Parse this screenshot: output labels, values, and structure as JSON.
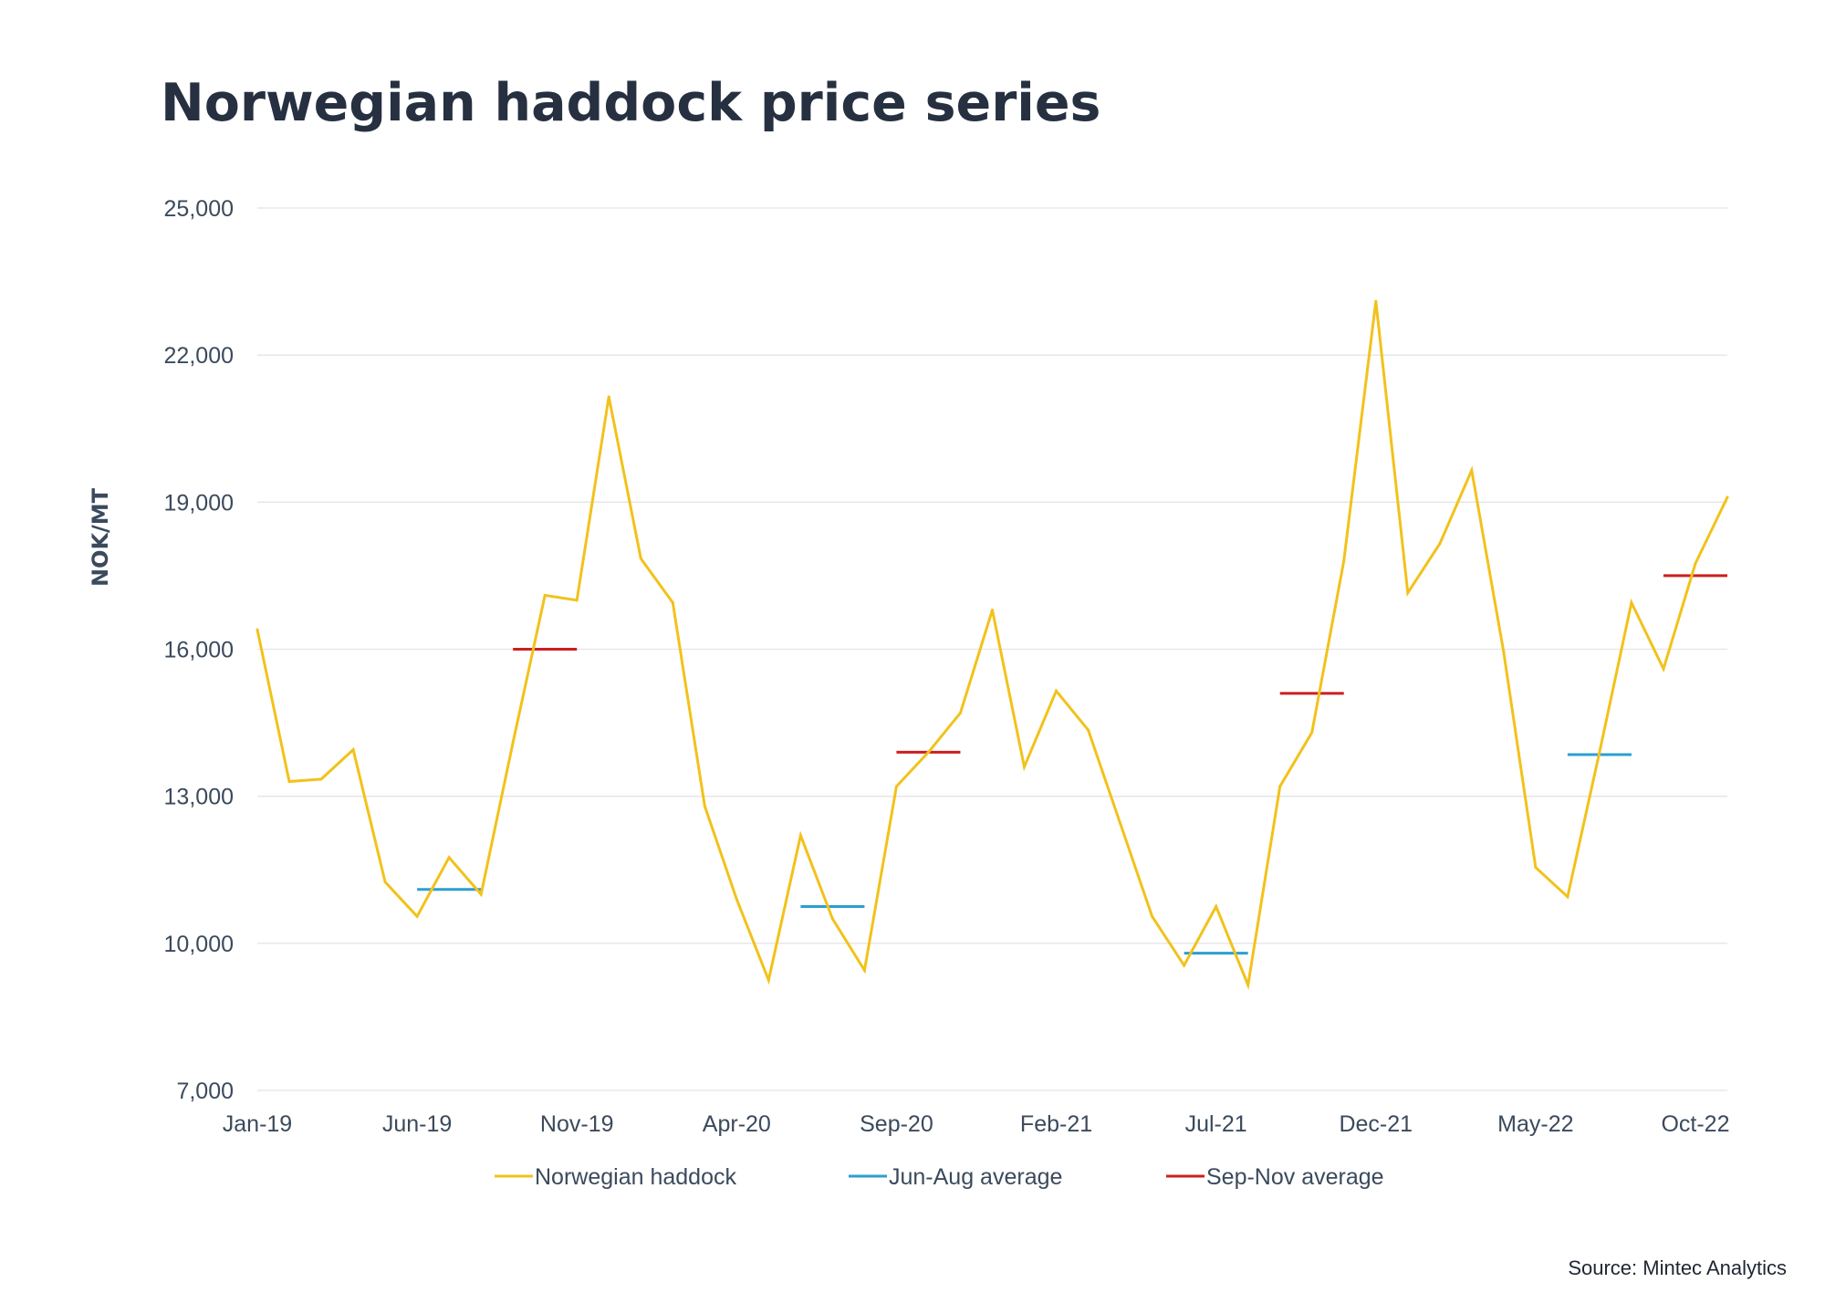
{
  "title": "Norwegian haddock price series",
  "source": "Source: Mintec Analytics",
  "colors": {
    "price_line": "#f2c21b",
    "jun_aug": "#2b9fce",
    "sep_nov": "#cc1f1f",
    "grid": "#e4e4e4",
    "text": "#3b4a5c",
    "title": "#263040"
  },
  "chart_data": {
    "type": "line",
    "title": "Norwegian haddock price series",
    "xlabel": "",
    "ylabel": "NOK/MT",
    "ylim": [
      7000,
      25000
    ],
    "yticks": [
      7000,
      10000,
      13000,
      16000,
      19000,
      22000,
      25000
    ],
    "ytick_labels": [
      "7,000",
      "10,000",
      "13,000",
      "16,000",
      "19,000",
      "22,000",
      "25,000"
    ],
    "grid": true,
    "legend_position": "bottom",
    "x": [
      "Jan-19",
      "Feb-19",
      "Mar-19",
      "Apr-19",
      "May-19",
      "Jun-19",
      "Jul-19",
      "Aug-19",
      "Sep-19",
      "Oct-19",
      "Nov-19",
      "Dec-19",
      "Jan-20",
      "Feb-20",
      "Mar-20",
      "Apr-20",
      "May-20",
      "Jun-20",
      "Jul-20",
      "Aug-20",
      "Sep-20",
      "Oct-20",
      "Nov-20",
      "Dec-20",
      "Jan-21",
      "Feb-21",
      "Mar-21",
      "Apr-21",
      "May-21",
      "Jun-21",
      "Jul-21",
      "Aug-21",
      "Sep-21",
      "Oct-21",
      "Nov-21",
      "Dec-21",
      "Jan-22",
      "Feb-22",
      "Mar-22",
      "Apr-22",
      "May-22",
      "Jun-22",
      "Jul-22",
      "Aug-22",
      "Sep-22",
      "Oct-22",
      "Nov-22"
    ],
    "xtick_labels": [
      "Jan-19",
      "Jun-19",
      "Nov-19",
      "Apr-20",
      "Sep-20",
      "Feb-21",
      "Jul-21",
      "Dec-21",
      "May-22",
      "Oct-22"
    ],
    "series": [
      {
        "name": "Norwegian haddock",
        "values": [
          16400,
          13300,
          13350,
          13950,
          11250,
          10550,
          11750,
          11000,
          14100,
          17100,
          17000,
          21150,
          17850,
          16950,
          12800,
          10900,
          9250,
          12200,
          10500,
          9450,
          13200,
          13900,
          14700,
          16800,
          13600,
          15150,
          14350,
          12450,
          10550,
          9550,
          10750,
          9150,
          13200,
          14300,
          17800,
          23100,
          17150,
          18150,
          19650,
          15950,
          11550,
          10950,
          13900,
          16950,
          15600,
          17750,
          19100
        ]
      }
    ],
    "averages": [
      {
        "name": "Jun-Aug average",
        "start": "Jun-19",
        "end": "Aug-19",
        "value": 11100
      },
      {
        "name": "Sep-Nov average",
        "start": "Sep-19",
        "end": "Nov-19",
        "value": 16000
      },
      {
        "name": "Jun-Aug average",
        "start": "Jun-20",
        "end": "Aug-20",
        "value": 10750
      },
      {
        "name": "Sep-Nov average",
        "start": "Sep-20",
        "end": "Nov-20",
        "value": 13900
      },
      {
        "name": "Jun-Aug average",
        "start": "Jun-21",
        "end": "Aug-21",
        "value": 9800
      },
      {
        "name": "Sep-Nov average",
        "start": "Sep-21",
        "end": "Nov-21",
        "value": 15100
      },
      {
        "name": "Jun-Aug average",
        "start": "Jun-22",
        "end": "Aug-22",
        "value": 13850
      },
      {
        "name": "Sep-Nov average",
        "start": "Sep-22",
        "end": "Nov-22",
        "value": 17500
      }
    ],
    "legend": [
      "Norwegian haddock",
      "Jun-Aug average",
      "Sep-Nov average"
    ]
  }
}
